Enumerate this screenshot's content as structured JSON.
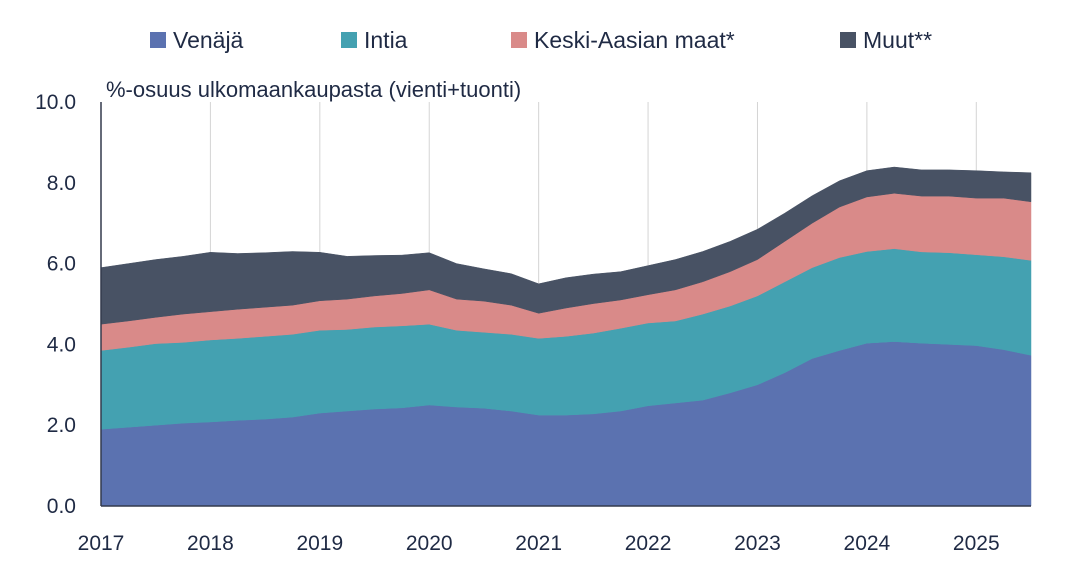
{
  "chart_data": {
    "type": "area",
    "stacked": true,
    "ylabel": "%-osuus ulkomaankaupasta (vienti+tuonti)",
    "ylim": [
      0,
      10
    ],
    "yticks": [
      0,
      2,
      4,
      6,
      8,
      10
    ],
    "ytick_labels": [
      "0.0",
      "2.0",
      "4.0",
      "6.0",
      "8.0",
      "10.0"
    ],
    "xlim": [
      2017.0,
      2025.5
    ],
    "xticks": [
      2017,
      2018,
      2019,
      2020,
      2021,
      2022,
      2023,
      2024,
      2025
    ],
    "xtick_labels": [
      "2017",
      "2018",
      "2019",
      "2020",
      "2021",
      "2022",
      "2023",
      "2024",
      "2025"
    ],
    "grid": "vertical",
    "legend": "top",
    "x": [
      2017.0,
      2017.25,
      2017.5,
      2017.75,
      2018.0,
      2018.25,
      2018.5,
      2018.75,
      2019.0,
      2019.25,
      2019.5,
      2019.75,
      2020.0,
      2020.25,
      2020.5,
      2020.75,
      2021.0,
      2021.25,
      2021.5,
      2021.75,
      2022.0,
      2022.25,
      2022.5,
      2022.75,
      2023.0,
      2023.25,
      2023.5,
      2023.75,
      2024.0,
      2024.25,
      2024.5,
      2024.75,
      2025.0,
      2025.25,
      2025.5
    ],
    "series": [
      {
        "name": "Venäjä",
        "color": "#5b72b0",
        "values": [
          1.9,
          1.95,
          2.0,
          2.05,
          2.08,
          2.12,
          2.15,
          2.2,
          2.3,
          2.35,
          2.4,
          2.43,
          2.5,
          2.45,
          2.42,
          2.35,
          2.25,
          2.25,
          2.28,
          2.35,
          2.48,
          2.55,
          2.62,
          2.8,
          3.0,
          3.3,
          3.65,
          3.85,
          4.03,
          4.07,
          4.03,
          4.0,
          3.97,
          3.87,
          3.73
        ]
      },
      {
        "name": "Intia",
        "color": "#44a1b1",
        "values": [
          1.95,
          1.98,
          2.02,
          2.0,
          2.03,
          2.03,
          2.05,
          2.05,
          2.05,
          2.02,
          2.03,
          2.03,
          2.0,
          1.9,
          1.88,
          1.9,
          1.9,
          1.95,
          2.0,
          2.05,
          2.05,
          2.03,
          2.13,
          2.15,
          2.2,
          2.25,
          2.25,
          2.3,
          2.27,
          2.3,
          2.26,
          2.27,
          2.25,
          2.3,
          2.35
        ]
      },
      {
        "name": "Keski-Aasian maat*",
        "color": "#d98a89",
        "values": [
          0.65,
          0.65,
          0.65,
          0.7,
          0.7,
          0.72,
          0.72,
          0.72,
          0.73,
          0.75,
          0.77,
          0.8,
          0.85,
          0.77,
          0.77,
          0.72,
          0.62,
          0.7,
          0.73,
          0.7,
          0.7,
          0.77,
          0.8,
          0.85,
          0.9,
          1.0,
          1.1,
          1.25,
          1.35,
          1.37,
          1.38,
          1.4,
          1.4,
          1.45,
          1.45
        ]
      },
      {
        "name": "Muut**",
        "color": "#485264",
        "values": [
          1.4,
          1.42,
          1.43,
          1.43,
          1.47,
          1.38,
          1.35,
          1.33,
          1.2,
          1.06,
          1.0,
          0.95,
          0.92,
          0.88,
          0.8,
          0.78,
          0.73,
          0.75,
          0.73,
          0.7,
          0.72,
          0.75,
          0.75,
          0.75,
          0.75,
          0.7,
          0.68,
          0.65,
          0.65,
          0.65,
          0.65,
          0.65,
          0.68,
          0.65,
          0.72
        ]
      }
    ]
  }
}
